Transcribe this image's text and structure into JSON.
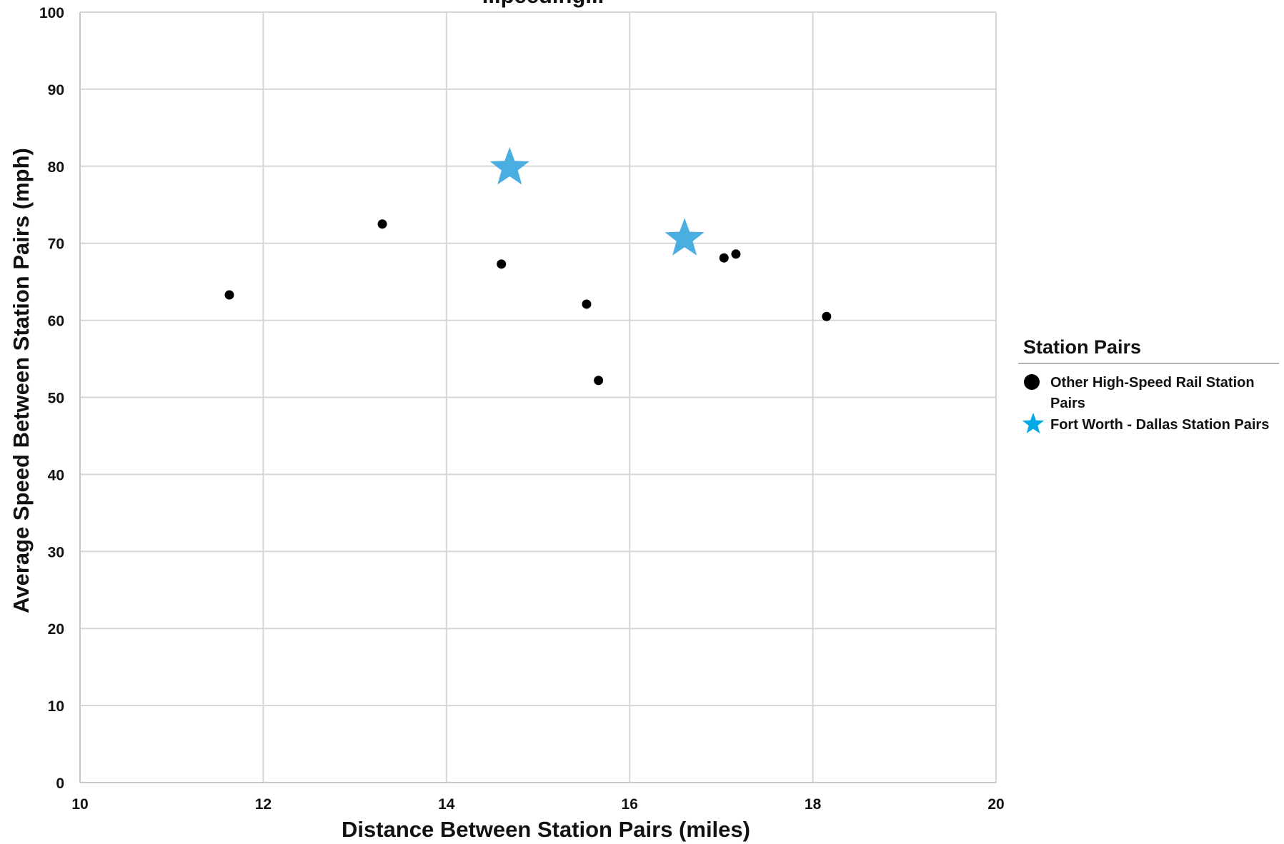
{
  "chart_data": {
    "type": "scatter",
    "title": "...peeding...",
    "xlabel": "Distance Between Station Pairs (miles)",
    "ylabel": "Average Speed Between Station Pairs (mph)",
    "xlim": [
      10,
      20
    ],
    "ylim": [
      0,
      100
    ],
    "x_ticks": [
      "10",
      "12",
      "14",
      "16",
      "18",
      "20"
    ],
    "y_ticks": [
      "0",
      "10",
      "20",
      "30",
      "40",
      "50",
      "60",
      "70",
      "80",
      "90",
      "100"
    ],
    "grid": true,
    "legend": {
      "title": "Station Pairs",
      "placement": "right"
    },
    "series": [
      {
        "name": "Other High-Speed Rail Station Pairs",
        "marker": "circle",
        "color": "#000000",
        "points": [
          {
            "x": 11.63,
            "y": 63.3
          },
          {
            "x": 13.3,
            "y": 72.5
          },
          {
            "x": 14.6,
            "y": 67.3
          },
          {
            "x": 15.53,
            "y": 62.1
          },
          {
            "x": 15.66,
            "y": 52.2
          },
          {
            "x": 17.03,
            "y": 68.1
          },
          {
            "x": 17.16,
            "y": 68.6
          },
          {
            "x": 18.15,
            "y": 60.5
          }
        ]
      },
      {
        "name": "Fort Worth - Dallas Station Pairs",
        "marker": "star",
        "color": "#4aaee0",
        "points": [
          {
            "x": 14.69,
            "y": 79.8
          },
          {
            "x": 16.6,
            "y": 70.6
          }
        ]
      }
    ]
  }
}
